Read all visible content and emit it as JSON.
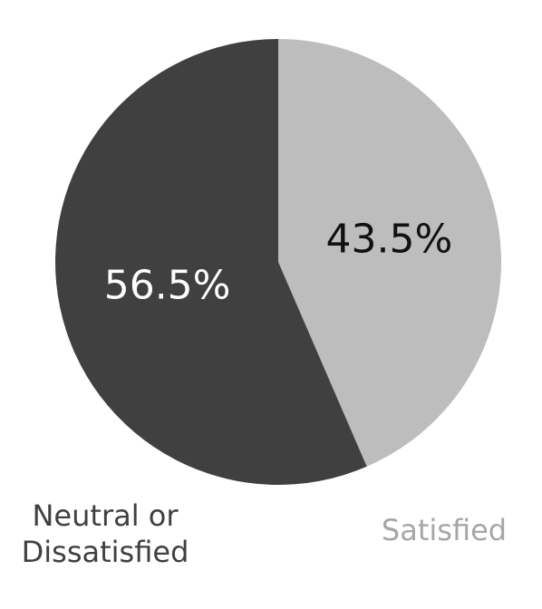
{
  "chart_data": {
    "type": "pie",
    "title": "",
    "start": "top",
    "direction": "clockwise",
    "slices": [
      {
        "label_lines": [
          "Satisfied"
        ],
        "value": 43.5,
        "value_label": "43.5%",
        "color": "#bdbdbd",
        "value_label_color": "#111111",
        "category_label_color": "#a6a6a6"
      },
      {
        "label_lines": [
          "Neutral or",
          "Dissatisfied"
        ],
        "value": 56.5,
        "value_label": "56.5%",
        "color": "#404040",
        "value_label_color": "#ffffff",
        "category_label_color": "#404040"
      }
    ]
  }
}
